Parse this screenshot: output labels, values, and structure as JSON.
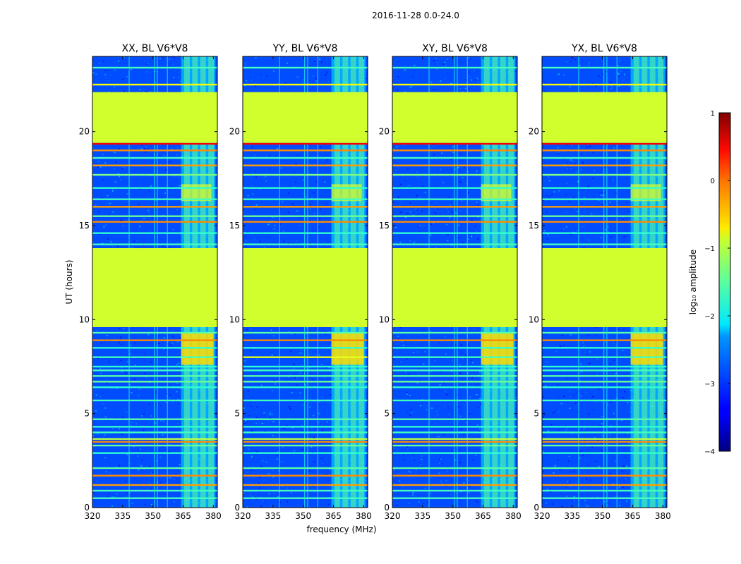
{
  "chart_data": {
    "type": "heatmap",
    "title": "2016-11-28 0.0-24.0",
    "xlabel": "frequency (MHz)",
    "ylabel": "UT (hours)",
    "xlim": [
      320,
      382
    ],
    "ylim": [
      0,
      24
    ],
    "xticks": [
      "320",
      "335",
      "350",
      "365",
      "380"
    ],
    "yticks": [
      "0",
      "5",
      "10",
      "15",
      "20"
    ],
    "panels": [
      {
        "title": "XX, BL V6*V8"
      },
      {
        "title": "YY, BL V6*V8"
      },
      {
        "title": "XY, BL V6*V8"
      },
      {
        "title": "YX, BL V6*V8"
      }
    ],
    "colorbar": {
      "label": "log₁₀ amplitude",
      "min": -4,
      "max": 1,
      "ticks": [
        "1",
        "0",
        "−1",
        "−2",
        "−3",
        "−4"
      ]
    },
    "flagged_ut_ranges": [
      [
        9.6,
        13.8
      ],
      [
        19.4,
        22.1
      ]
    ],
    "flagged_value": -1.1,
    "rfi_freq_band_mhz": [
      364,
      381
    ],
    "horizontal_features": [
      {
        "ut": 0.5,
        "v": -1.8
      },
      {
        "ut": 0.9,
        "v": -1.8
      },
      {
        "ut": 1.2,
        "v": -0.4
      },
      {
        "ut": 1.7,
        "v": -0.3
      },
      {
        "ut": 2.1,
        "v": -1.7
      },
      {
        "ut": 2.9,
        "v": -1.9
      },
      {
        "ut": 3.3,
        "v": -1.6
      },
      {
        "ut": 3.5,
        "v": -0.3
      },
      {
        "ut": 3.65,
        "v": -1.2
      },
      {
        "ut": 4.0,
        "v": -1.8
      },
      {
        "ut": 4.3,
        "v": -1.9
      },
      {
        "ut": 4.7,
        "v": -1.7
      },
      {
        "ut": 5.7,
        "v": -1.8
      },
      {
        "ut": 6.4,
        "v": -1.9
      },
      {
        "ut": 6.7,
        "v": -1.6
      },
      {
        "ut": 7.0,
        "v": -1.7
      },
      {
        "ut": 7.3,
        "v": -1.8
      },
      {
        "ut": 7.5,
        "v": -1.9
      },
      {
        "ut": 8.0,
        "v": -1.8
      },
      {
        "ut": 8.5,
        "v": -1.9
      },
      {
        "ut": 8.9,
        "v": -0.3
      },
      {
        "ut": 9.3,
        "v": -1.7
      },
      {
        "ut": 14.0,
        "v": -1.8
      },
      {
        "ut": 14.6,
        "v": -1.9
      },
      {
        "ut": 15.2,
        "v": -0.3
      },
      {
        "ut": 15.5,
        "v": -1.6
      },
      {
        "ut": 16.0,
        "v": -0.4
      },
      {
        "ut": 16.4,
        "v": -1.8
      },
      {
        "ut": 17.0,
        "v": -1.9
      },
      {
        "ut": 17.7,
        "v": -1.5
      },
      {
        "ut": 18.2,
        "v": -0.4
      },
      {
        "ut": 18.6,
        "v": -1.8
      },
      {
        "ut": 19.0,
        "v": -0.3
      },
      {
        "ut": 19.35,
        "v": 0.4
      },
      {
        "ut": 22.5,
        "v": -0.9
      },
      {
        "ut": 23.4,
        "v": -1.8
      }
    ]
  }
}
